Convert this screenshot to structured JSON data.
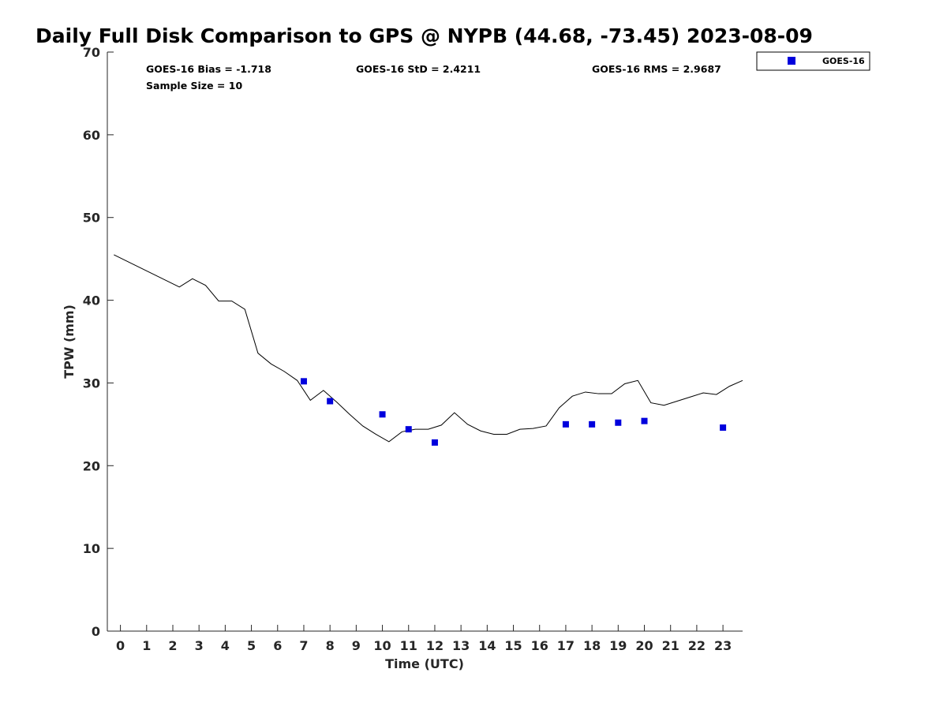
{
  "chart_data": {
    "type": "line",
    "title": "Daily Full Disk Comparison to GPS @ NYPB (44.68, -73.45) 2023-08-09",
    "xlabel": "Time (UTC)",
    "ylabel": "TPW (mm)",
    "xlim": [
      -0.5,
      23.75
    ],
    "ylim": [
      0,
      70
    ],
    "xticks": [
      0,
      1,
      2,
      3,
      4,
      5,
      6,
      7,
      8,
      9,
      10,
      11,
      12,
      13,
      14,
      15,
      16,
      17,
      18,
      19,
      20,
      21,
      22,
      23
    ],
    "yticks": [
      0,
      10,
      20,
      30,
      40,
      50,
      60,
      70
    ],
    "grid": false,
    "legend_position": "outside-top-right",
    "stats": {
      "bias": "GOES-16 Bias = -1.718",
      "std": "GOES-16 StD = 2.4211",
      "rms": "GOES-16 RMS = 2.9687",
      "sample": "Sample Size = 10"
    },
    "series": [
      {
        "type": "line",
        "color": "#000000",
        "x": [
          -0.25,
          2.25,
          2.75,
          3.25,
          3.75,
          4.25,
          4.75,
          5.25,
          5.75,
          6.25,
          6.75,
          7.25,
          7.75,
          8.25,
          8.75,
          9.25,
          9.75,
          10.25,
          10.75,
          11.25,
          11.75,
          12.25,
          12.75,
          13.25,
          13.75,
          14.25,
          14.75,
          15.25,
          15.75,
          16.25,
          16.75,
          17.25,
          17.75,
          18.25,
          18.75,
          19.25,
          19.75,
          20.25,
          20.75,
          21.25,
          21.75,
          22.25,
          22.75,
          23.25,
          23.75
        ],
        "values": [
          45.5,
          41.6,
          42.6,
          41.8,
          39.9,
          39.9,
          38.9,
          33.6,
          32.3,
          31.4,
          30.3,
          27.9,
          29.1,
          27.7,
          26.2,
          24.8,
          23.8,
          22.9,
          24.1,
          24.4,
          24.4,
          24.9,
          26.4,
          25.0,
          24.2,
          23.8,
          23.8,
          24.4,
          24.5,
          24.8,
          27.0,
          28.4,
          28.9,
          28.7,
          28.7,
          29.9,
          30.3,
          27.6,
          27.3,
          27.8,
          28.3,
          28.8,
          28.6,
          29.6,
          30.3
        ]
      },
      {
        "name": "GOES-16",
        "type": "scatter",
        "marker": "square",
        "color": "#0000dd",
        "x": [
          7,
          8,
          10,
          11,
          12,
          17,
          18,
          19,
          20,
          23
        ],
        "values": [
          30.2,
          27.8,
          26.2,
          24.4,
          22.8,
          25.0,
          25.0,
          25.2,
          25.4,
          24.6
        ]
      }
    ]
  }
}
